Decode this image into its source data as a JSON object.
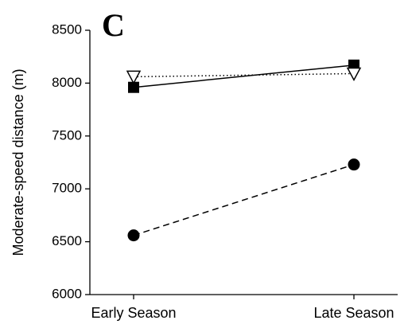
{
  "chart_data": {
    "type": "line",
    "panel_label": "C",
    "y_label": "Moderate-speed distance (m)",
    "categories": [
      "Early Season",
      "Late Season"
    ],
    "series": [
      {
        "color": "#000000",
        "marker": "square",
        "line_style": "solid",
        "values": [
          7960,
          8170
        ]
      },
      {
        "color": "#000000",
        "marker": "triangle-down-open",
        "line_style": "dotted",
        "values": [
          8060,
          8090
        ]
      },
      {
        "color": "#000000",
        "marker": "circle",
        "line_style": "dashed",
        "values": [
          6560,
          7230
        ]
      }
    ],
    "ylim": [
      6000,
      8500
    ],
    "yticks": [
      6000,
      6500,
      7000,
      7500,
      8000,
      8500
    ],
    "grid": false
  }
}
